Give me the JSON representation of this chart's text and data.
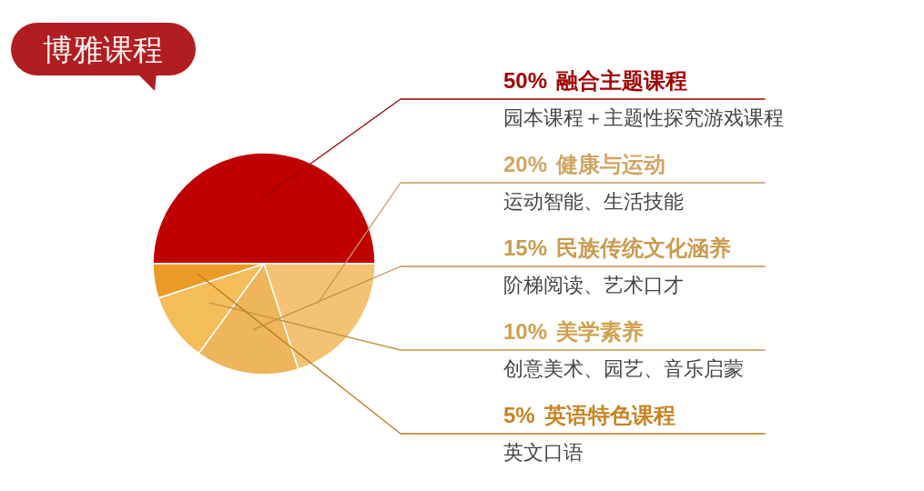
{
  "chart_data": {
    "type": "pie",
    "title": "博雅课程",
    "categories": [
      "融合主题课程",
      "健康与运动",
      "民族传统文化涵养",
      "美学素养",
      "英语特色课程"
    ],
    "values": [
      50,
      20,
      15,
      10,
      5
    ],
    "value_labels": [
      "50%",
      "20%",
      "15%",
      "10%",
      "5%"
    ],
    "colors": [
      "#c00000",
      "#f3c272",
      "#eeb55a",
      "#f4bd5a",
      "#eb9a26"
    ],
    "annotations": [
      "园本课程＋主题性探究游戏课程",
      "运动智能、生活技能",
      "阶梯阅读、艺术口才",
      "创意美术、园艺、音乐启蒙",
      "英文口语"
    ]
  }
}
